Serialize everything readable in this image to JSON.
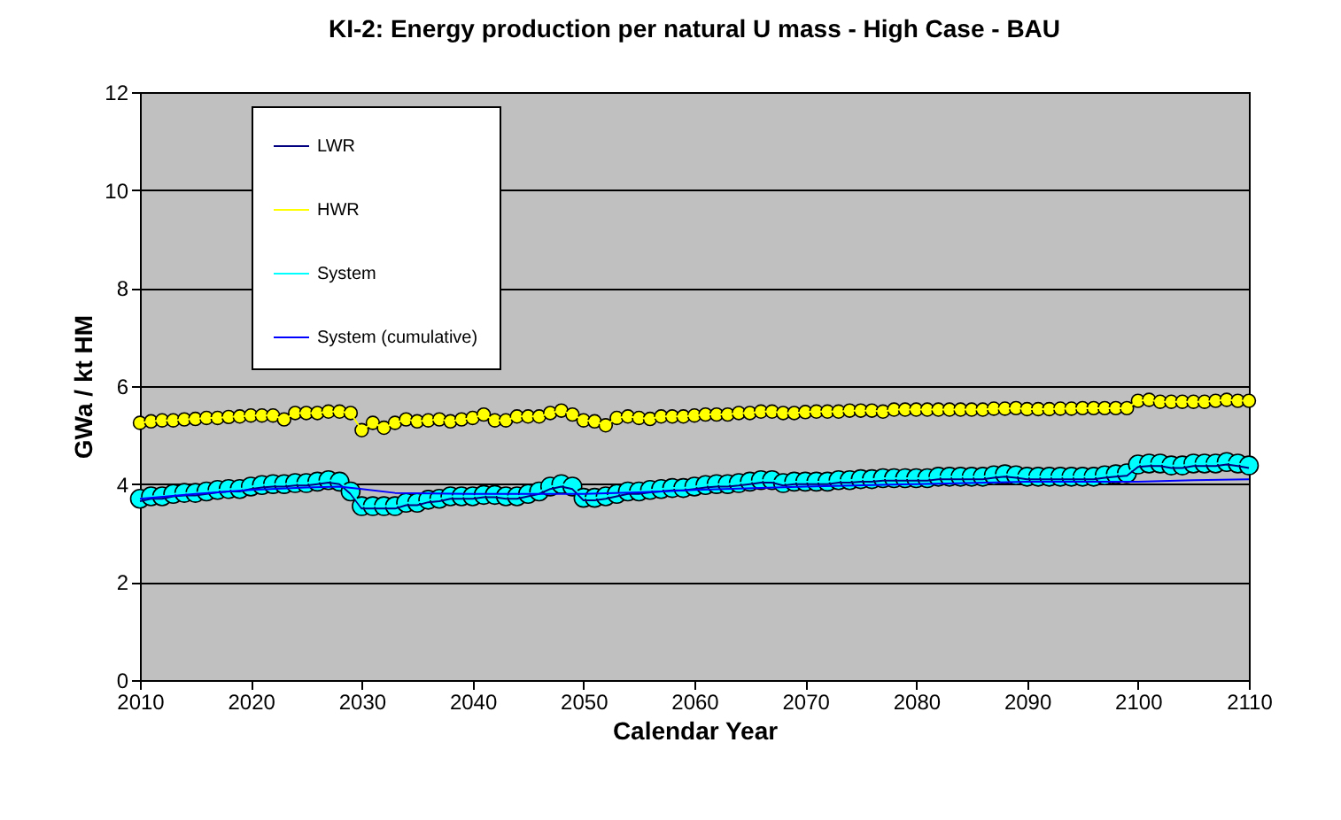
{
  "chart_data": {
    "type": "line",
    "title": "KI-2: Energy production per natural U mass - High Case - BAU",
    "xlabel": "Calendar Year",
    "ylabel": "GWa / kt HM",
    "x": [
      2010,
      2011,
      2012,
      2013,
      2014,
      2015,
      2016,
      2017,
      2018,
      2019,
      2020,
      2021,
      2022,
      2023,
      2024,
      2025,
      2026,
      2027,
      2028,
      2029,
      2030,
      2031,
      2032,
      2033,
      2034,
      2035,
      2036,
      2037,
      2038,
      2039,
      2040,
      2041,
      2042,
      2043,
      2044,
      2045,
      2046,
      2047,
      2048,
      2049,
      2050,
      2051,
      2052,
      2053,
      2054,
      2055,
      2056,
      2057,
      2058,
      2059,
      2060,
      2061,
      2062,
      2063,
      2064,
      2065,
      2066,
      2067,
      2068,
      2069,
      2070,
      2071,
      2072,
      2073,
      2074,
      2075,
      2076,
      2077,
      2078,
      2079,
      2080,
      2081,
      2082,
      2083,
      2084,
      2085,
      2086,
      2087,
      2088,
      2089,
      2090,
      2091,
      2092,
      2093,
      2094,
      2095,
      2096,
      2097,
      2098,
      2099,
      2100,
      2101,
      2102,
      2103,
      2104,
      2105,
      2106,
      2107,
      2108,
      2109,
      2110
    ],
    "series": [
      {
        "name": "LWR",
        "color": "#000080",
        "marker": "diamond",
        "values": [
          3.65,
          3.7,
          3.7,
          3.75,
          3.77,
          3.77,
          3.8,
          3.83,
          3.85,
          3.85,
          3.9,
          3.93,
          3.95,
          3.95,
          3.97,
          3.97,
          4.0,
          4.03,
          4.0,
          3.8,
          3.5,
          3.5,
          3.5,
          3.5,
          3.57,
          3.57,
          3.63,
          3.65,
          3.7,
          3.7,
          3.7,
          3.73,
          3.73,
          3.7,
          3.7,
          3.75,
          3.8,
          3.9,
          3.95,
          3.9,
          3.67,
          3.67,
          3.7,
          3.75,
          3.8,
          3.8,
          3.83,
          3.85,
          3.87,
          3.87,
          3.9,
          3.93,
          3.95,
          3.95,
          3.97,
          4.0,
          4.03,
          4.03,
          3.97,
          4.0,
          4.0,
          4.0,
          4.0,
          4.03,
          4.03,
          4.05,
          4.05,
          4.07,
          4.07,
          4.07,
          4.07,
          4.07,
          4.1,
          4.1,
          4.1,
          4.1,
          4.1,
          4.13,
          4.15,
          4.13,
          4.1,
          4.1,
          4.1,
          4.1,
          4.1,
          4.1,
          4.1,
          4.13,
          4.15,
          4.17,
          4.35,
          4.37,
          4.37,
          4.33,
          4.33,
          4.37,
          4.37,
          4.37,
          4.4,
          4.37,
          4.33
        ]
      },
      {
        "name": "HWR",
        "color": "#ffff00",
        "marker": "circle",
        "values": [
          5.25,
          5.28,
          5.3,
          5.3,
          5.32,
          5.33,
          5.35,
          5.35,
          5.37,
          5.38,
          5.4,
          5.4,
          5.4,
          5.32,
          5.45,
          5.45,
          5.45,
          5.48,
          5.48,
          5.45,
          5.1,
          5.25,
          5.15,
          5.25,
          5.32,
          5.28,
          5.3,
          5.32,
          5.28,
          5.32,
          5.35,
          5.42,
          5.3,
          5.3,
          5.38,
          5.38,
          5.38,
          5.45,
          5.5,
          5.42,
          5.3,
          5.28,
          5.2,
          5.35,
          5.38,
          5.35,
          5.33,
          5.38,
          5.38,
          5.38,
          5.4,
          5.42,
          5.42,
          5.42,
          5.45,
          5.45,
          5.48,
          5.48,
          5.45,
          5.45,
          5.47,
          5.48,
          5.48,
          5.48,
          5.5,
          5.5,
          5.5,
          5.48,
          5.52,
          5.52,
          5.52,
          5.52,
          5.52,
          5.52,
          5.52,
          5.52,
          5.52,
          5.54,
          5.54,
          5.55,
          5.53,
          5.53,
          5.53,
          5.54,
          5.54,
          5.55,
          5.55,
          5.55,
          5.55,
          5.55,
          5.7,
          5.72,
          5.68,
          5.68,
          5.68,
          5.68,
          5.68,
          5.7,
          5.72,
          5.7,
          5.7
        ]
      },
      {
        "name": "System",
        "color": "#00ffff",
        "marker": "circle",
        "values": [
          3.7,
          3.75,
          3.75,
          3.8,
          3.82,
          3.82,
          3.85,
          3.88,
          3.9,
          3.9,
          3.95,
          3.98,
          4.0,
          4.0,
          4.02,
          4.02,
          4.05,
          4.08,
          4.05,
          3.85,
          3.55,
          3.55,
          3.55,
          3.55,
          3.62,
          3.62,
          3.68,
          3.7,
          3.75,
          3.75,
          3.75,
          3.78,
          3.78,
          3.75,
          3.75,
          3.8,
          3.85,
          3.95,
          4.0,
          3.95,
          3.72,
          3.72,
          3.75,
          3.8,
          3.85,
          3.85,
          3.88,
          3.9,
          3.92,
          3.92,
          3.95,
          3.98,
          4.0,
          4.0,
          4.02,
          4.05,
          4.08,
          4.08,
          4.02,
          4.05,
          4.05,
          4.05,
          4.05,
          4.08,
          4.08,
          4.1,
          4.1,
          4.12,
          4.12,
          4.12,
          4.12,
          4.12,
          4.15,
          4.15,
          4.15,
          4.15,
          4.15,
          4.18,
          4.2,
          4.18,
          4.15,
          4.15,
          4.15,
          4.15,
          4.15,
          4.15,
          4.15,
          4.18,
          4.2,
          4.22,
          4.4,
          4.42,
          4.42,
          4.38,
          4.38,
          4.42,
          4.42,
          4.42,
          4.45,
          4.42,
          4.38
        ]
      },
      {
        "name": "System (cumulative)",
        "color": "#0000ff",
        "marker": "none",
        "x": [
          2010,
          2015,
          2020,
          2025,
          2028,
          2030,
          2033,
          2040,
          2050,
          2055,
          2060,
          2070,
          2080,
          2090,
          2100,
          2105,
          2110
        ],
        "values": [
          3.7,
          3.8,
          3.88,
          3.93,
          3.95,
          3.9,
          3.82,
          3.8,
          3.8,
          3.83,
          3.88,
          3.95,
          4.0,
          4.05,
          4.05,
          4.08,
          4.1
        ]
      }
    ],
    "xlim": [
      2010,
      2110
    ],
    "xticks": [
      2010,
      2020,
      2030,
      2040,
      2050,
      2060,
      2070,
      2080,
      2090,
      2100,
      2110
    ],
    "ylim": [
      0,
      12
    ],
    "yticks": [
      0,
      2,
      4,
      6,
      8,
      10,
      12
    ],
    "grid": "y",
    "legend": "top left"
  }
}
